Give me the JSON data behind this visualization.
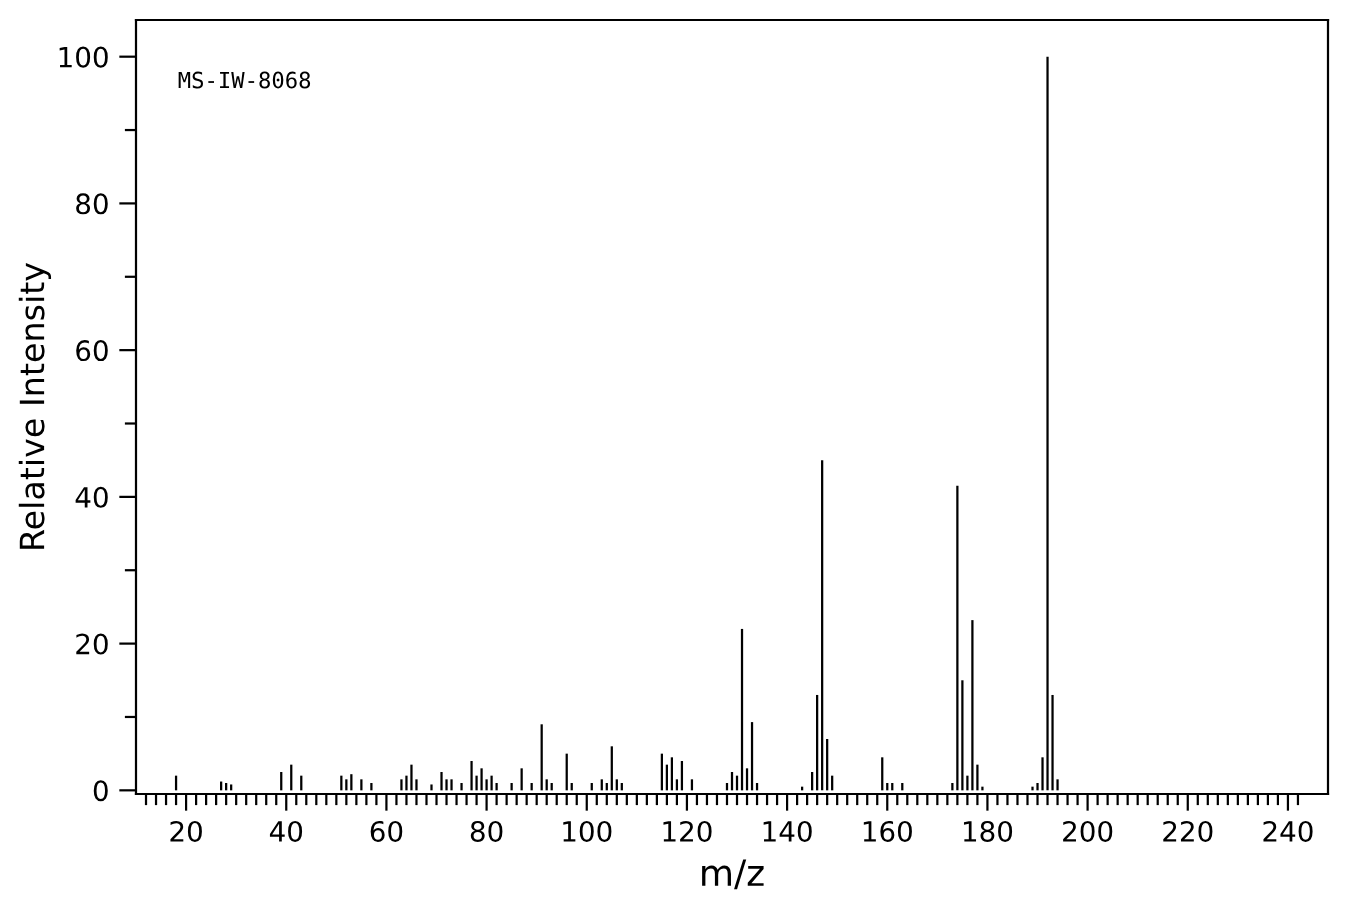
{
  "chart_data": {
    "type": "bar",
    "xlabel": "m/z",
    "ylabel": "Relative Intensity",
    "annotations": [
      "MS-IW-8068"
    ],
    "color": "#000000",
    "x": [
      18,
      27,
      28,
      29,
      39,
      41,
      43,
      51,
      52,
      53,
      55,
      57,
      63,
      64,
      65,
      66,
      69,
      71,
      72,
      73,
      75,
      77,
      78,
      79,
      80,
      81,
      82,
      85,
      87,
      89,
      91,
      92,
      93,
      96,
      97,
      101,
      103,
      104,
      105,
      106,
      107,
      115,
      116,
      117,
      118,
      119,
      121,
      128,
      129,
      130,
      131,
      132,
      133,
      134,
      143,
      145,
      146,
      147,
      148,
      149,
      159,
      160,
      161,
      163,
      173,
      174,
      175,
      176,
      177,
      178,
      179,
      189,
      190,
      191,
      192,
      193,
      194
    ],
    "values": [
      2,
      1.2,
      1,
      0.8,
      2.5,
      3.5,
      2,
      2,
      1.5,
      2.2,
      1.5,
      1,
      1.5,
      2,
      3.5,
      1.5,
      0.8,
      2.5,
      1.5,
      1.5,
      1,
      4,
      2,
      3,
      1.5,
      2,
      1,
      1,
      3,
      1,
      9,
      1.5,
      1,
      5,
      1,
      1,
      1.5,
      1,
      6,
      1.5,
      1,
      5,
      3.5,
      4.5,
      1.5,
      4,
      1.5,
      1,
      2.5,
      2,
      22,
      3,
      9.3,
      1,
      0.5,
      2.5,
      13,
      45,
      7,
      2,
      4.5,
      1,
      1,
      1,
      1,
      41.5,
      15,
      2,
      23.2,
      3.5,
      0.5,
      0.5,
      1,
      4.5,
      100,
      13,
      1.5
    ],
    "xlim": [
      10,
      248
    ],
    "ylim": [
      -0.5,
      105
    ],
    "xticks": [
      {
        "value": 12,
        "label": null
      },
      {
        "value": 14,
        "label": null
      },
      {
        "value": 16,
        "label": null
      },
      {
        "value": 18,
        "label": null
      },
      20,
      {
        "value": 22,
        "label": null
      },
      {
        "value": 24,
        "label": null
      },
      {
        "value": 26,
        "label": null
      },
      {
        "value": 28,
        "label": null
      },
      {
        "value": 30,
        "label": null
      },
      {
        "value": 32,
        "label": null
      },
      {
        "value": 34,
        "label": null
      },
      {
        "value": 36,
        "label": null
      },
      {
        "value": 38,
        "label": null
      },
      40,
      {
        "value": 42,
        "label": null
      },
      {
        "value": 44,
        "label": null
      },
      {
        "value": 46,
        "label": null
      },
      {
        "value": 48,
        "label": null
      },
      {
        "value": 50,
        "label": null
      },
      {
        "value": 52,
        "label": null
      },
      {
        "value": 54,
        "label": null
      },
      {
        "value": 56,
        "label": null
      },
      {
        "value": 58,
        "label": null
      },
      60,
      {
        "value": 62,
        "label": null
      },
      {
        "value": 64,
        "label": null
      },
      {
        "value": 66,
        "label": null
      },
      {
        "value": 68,
        "label": null
      },
      {
        "value": 70,
        "label": null
      },
      {
        "value": 72,
        "label": null
      },
      {
        "value": 74,
        "label": null
      },
      {
        "value": 76,
        "label": null
      },
      {
        "value": 78,
        "label": null
      },
      80,
      {
        "value": 82,
        "label": null
      },
      {
        "value": 84,
        "label": null
      },
      {
        "value": 86,
        "label": null
      },
      {
        "value": 88,
        "label": null
      },
      {
        "value": 90,
        "label": null
      },
      {
        "value": 92,
        "label": null
      },
      {
        "value": 94,
        "label": null
      },
      {
        "value": 96,
        "label": null
      },
      {
        "value": 98,
        "label": null
      },
      100,
      {
        "value": 102,
        "label": null
      },
      {
        "value": 104,
        "label": null
      },
      {
        "value": 106,
        "label": null
      },
      {
        "value": 108,
        "label": null
      },
      {
        "value": 110,
        "label": null
      },
      {
        "value": 112,
        "label": null
      },
      {
        "value": 114,
        "label": null
      },
      {
        "value": 116,
        "label": null
      },
      {
        "value": 118,
        "label": null
      },
      120,
      {
        "value": 122,
        "label": null
      },
      {
        "value": 124,
        "label": null
      },
      {
        "value": 126,
        "label": null
      },
      {
        "value": 128,
        "label": null
      },
      {
        "value": 130,
        "label": null
      },
      {
        "value": 132,
        "label": null
      },
      {
        "value": 134,
        "label": null
      },
      {
        "value": 136,
        "label": null
      },
      {
        "value": 138,
        "label": null
      },
      140,
      {
        "value": 142,
        "label": null
      },
      {
        "value": 144,
        "label": null
      },
      {
        "value": 146,
        "label": null
      },
      {
        "value": 148,
        "label": null
      },
      {
        "value": 150,
        "label": null
      },
      {
        "value": 152,
        "label": null
      },
      {
        "value": 154,
        "label": null
      },
      {
        "value": 156,
        "label": null
      },
      {
        "value": 158,
        "label": null
      },
      160,
      {
        "value": 162,
        "label": null
      },
      {
        "value": 164,
        "label": null
      },
      {
        "value": 166,
        "label": null
      },
      {
        "value": 168,
        "label": null
      },
      {
        "value": 170,
        "label": null
      },
      {
        "value": 172,
        "label": null
      },
      {
        "value": 174,
        "label": null
      },
      {
        "value": 176,
        "label": null
      },
      {
        "value": 178,
        "label": null
      },
      180,
      {
        "value": 182,
        "label": null
      },
      {
        "value": 184,
        "label": null
      },
      {
        "value": 186,
        "label": null
      },
      {
        "value": 188,
        "label": null
      },
      {
        "value": 190,
        "label": null
      },
      {
        "value": 192,
        "label": null
      },
      {
        "value": 194,
        "label": null
      },
      {
        "value": 196,
        "label": null
      },
      {
        "value": 198,
        "label": null
      },
      200,
      {
        "value": 202,
        "label": null
      },
      {
        "value": 204,
        "label": null
      },
      {
        "value": 206,
        "label": null
      },
      {
        "value": 208,
        "label": null
      },
      {
        "value": 210,
        "label": null
      },
      {
        "value": 212,
        "label": null
      },
      {
        "value": 214,
        "label": null
      },
      {
        "value": 216,
        "label": null
      },
      {
        "value": 218,
        "label": null
      },
      220,
      {
        "value": 222,
        "label": null
      },
      {
        "value": 224,
        "label": null
      },
      {
        "value": 226,
        "label": null
      },
      {
        "value": 228,
        "label": null
      },
      {
        "value": 230,
        "label": null
      },
      {
        "value": 232,
        "label": null
      },
      {
        "value": 234,
        "label": null
      },
      {
        "value": 236,
        "label": null
      },
      {
        "value": 238,
        "label": null
      },
      240,
      {
        "value": 242,
        "label": null
      }
    ],
    "yticks": [
      0,
      {
        "value": 10,
        "label": null
      },
      20,
      {
        "value": 30,
        "label": null
      },
      40,
      {
        "value": 50,
        "label": null
      },
      60,
      {
        "value": 70,
        "label": null
      },
      80,
      {
        "value": 90,
        "label": null
      },
      100
    ],
    "grid": false,
    "legend": false
  }
}
